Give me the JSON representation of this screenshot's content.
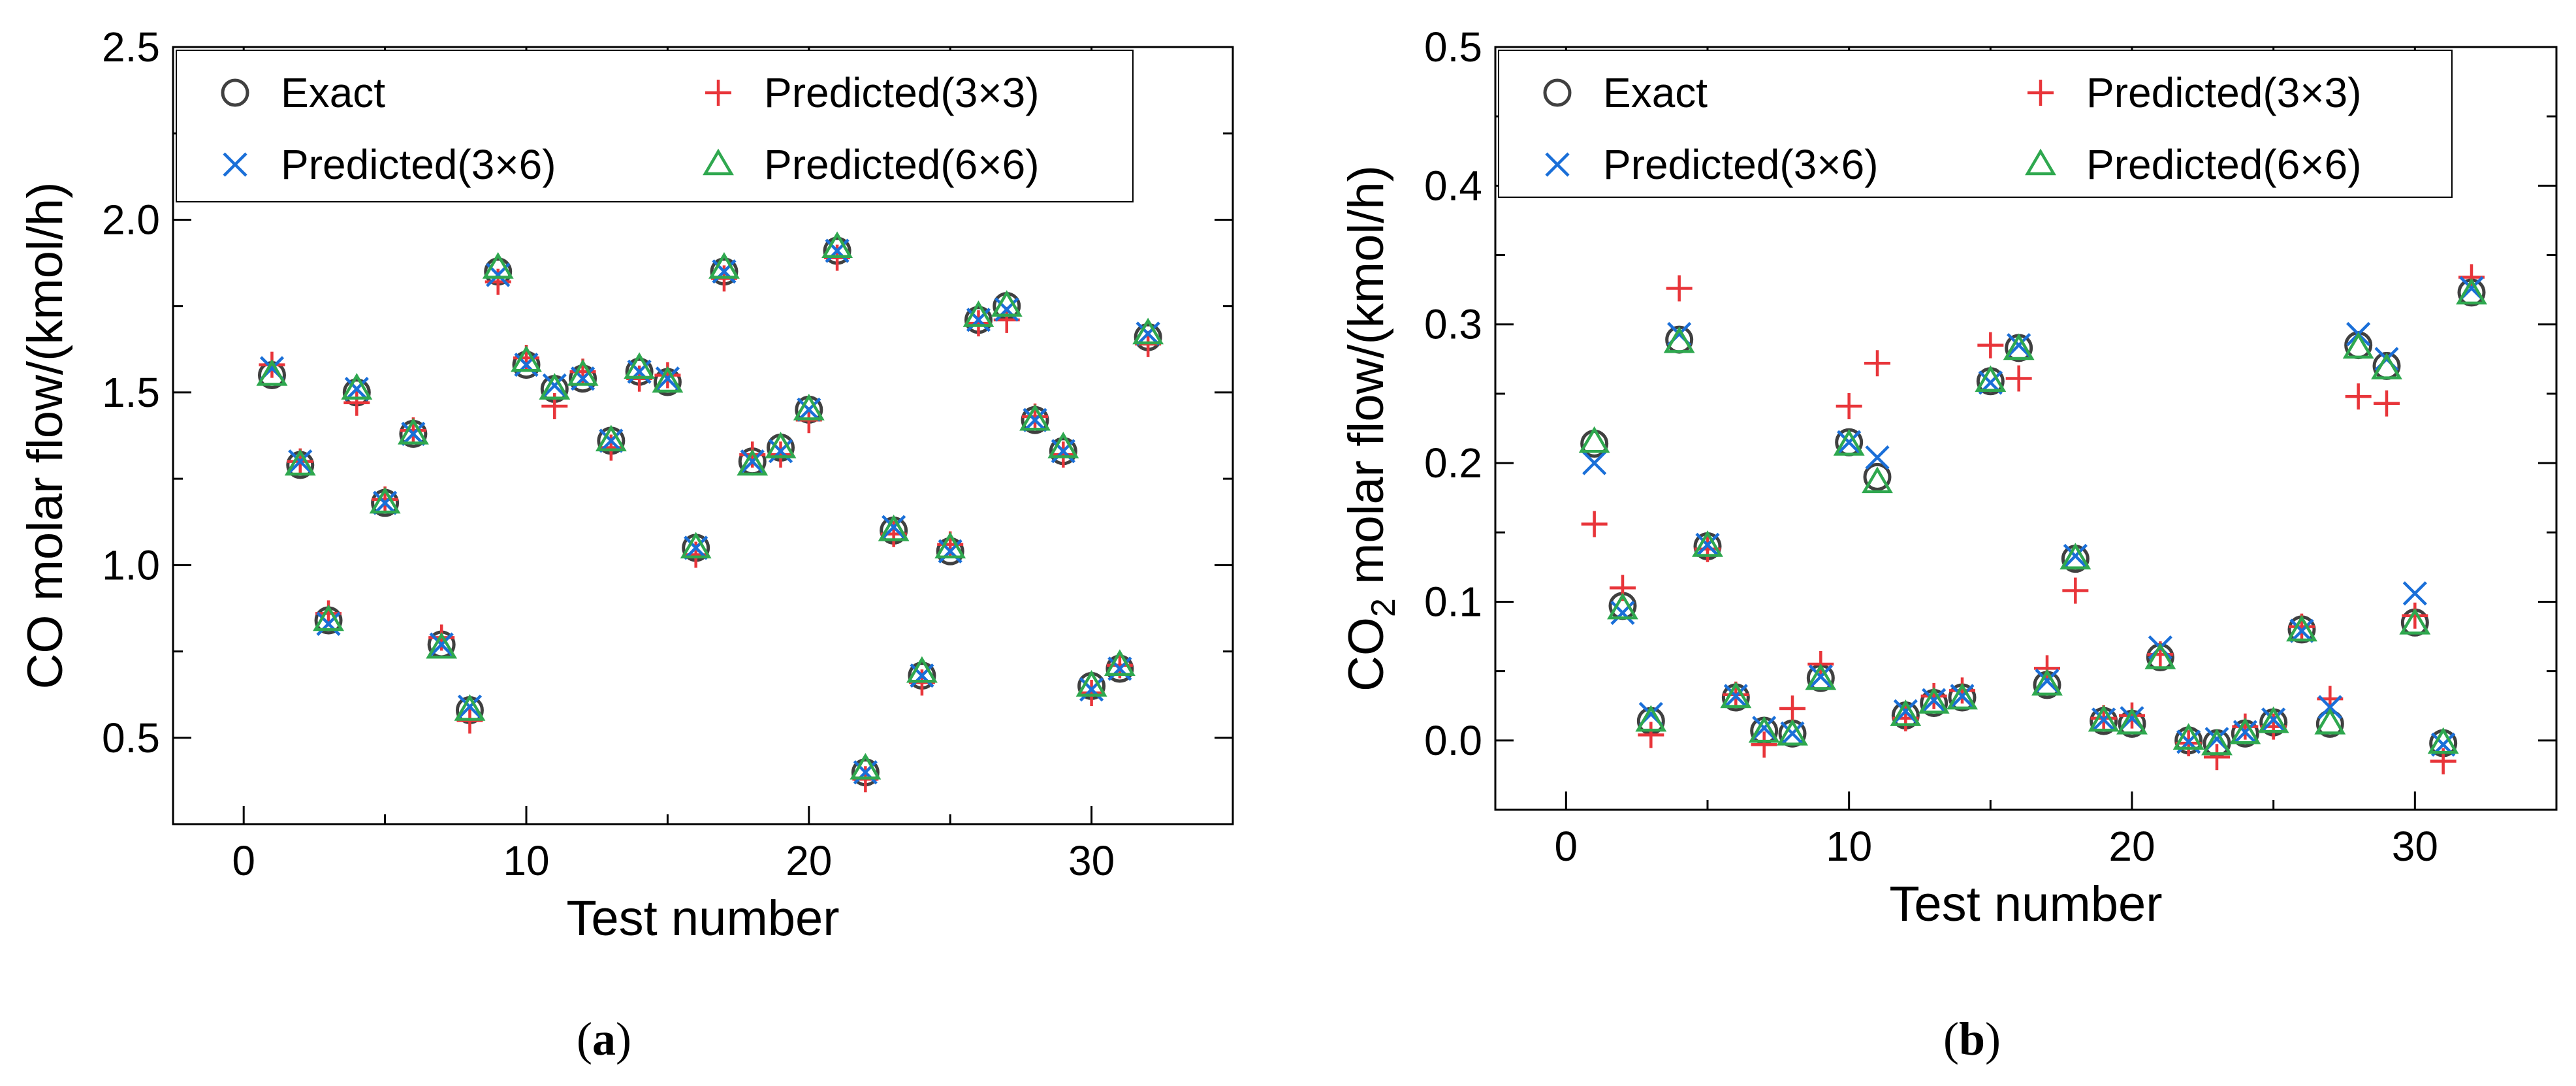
{
  "colors": {
    "exact": "#404040",
    "predicted_3x3": "#e8353a",
    "predicted_3x6": "#1a6fd8",
    "predicted_6x6": "#2fa84f",
    "axis": "#000000"
  },
  "chart_data": [
    {
      "id": "a",
      "type": "scatter",
      "caption_open": "(",
      "caption_letter": "a",
      "caption_close": ")",
      "xlabel": "Test number",
      "ylabel": "CO molar flow/(kmol/h)",
      "xlim": [
        -2.5,
        35
      ],
      "ylim": [
        0.25,
        2.5
      ],
      "xticks": [
        0,
        10,
        20,
        30
      ],
      "xtick_labels": [
        "0",
        "10",
        "20",
        "30"
      ],
      "yticks": [
        0.5,
        1.0,
        1.5,
        2.0,
        2.5
      ],
      "ytick_labels": [
        "0.5",
        "1.0",
        "1.5",
        "2.0",
        "2.5"
      ],
      "x": [
        1,
        2,
        3,
        4,
        5,
        6,
        7,
        8,
        9,
        10,
        11,
        12,
        13,
        14,
        15,
        16,
        17,
        18,
        19,
        20,
        21,
        22,
        23,
        24,
        25,
        26,
        27,
        28,
        29,
        30,
        31,
        32
      ],
      "series": [
        {
          "name": "Exact",
          "marker": "circle",
          "values": [
            1.55,
            1.29,
            0.84,
            1.5,
            1.18,
            1.38,
            0.77,
            0.58,
            1.85,
            1.58,
            1.51,
            1.54,
            1.36,
            1.56,
            1.53,
            1.05,
            1.85,
            1.3,
            1.34,
            1.45,
            1.91,
            0.4,
            1.1,
            0.68,
            1.04,
            1.71,
            1.75,
            1.42,
            1.33,
            0.65,
            0.7,
            1.66
          ]
        },
        {
          "name": "Predicted(3×3)",
          "marker": "plus",
          "values": [
            1.58,
            1.3,
            0.86,
            1.47,
            1.19,
            1.39,
            0.79,
            0.55,
            1.82,
            1.6,
            1.46,
            1.56,
            1.34,
            1.54,
            1.55,
            1.03,
            1.83,
            1.32,
            1.32,
            1.42,
            1.89,
            0.38,
            1.09,
            0.66,
            1.06,
            1.7,
            1.71,
            1.43,
            1.32,
            0.63,
            0.71,
            1.64
          ]
        },
        {
          "name": "Predicted(3×6)",
          "marker": "x",
          "values": [
            1.57,
            1.3,
            0.83,
            1.51,
            1.18,
            1.38,
            0.77,
            0.59,
            1.84,
            1.58,
            1.52,
            1.54,
            1.36,
            1.56,
            1.54,
            1.05,
            1.85,
            1.3,
            1.33,
            1.45,
            1.91,
            0.4,
            1.11,
            0.68,
            1.04,
            1.71,
            1.74,
            1.42,
            1.33,
            0.64,
            0.7,
            1.67
          ]
        },
        {
          "name": "Predicted(6×6)",
          "marker": "triangle",
          "values": [
            1.55,
            1.29,
            0.84,
            1.51,
            1.18,
            1.38,
            0.76,
            0.58,
            1.86,
            1.59,
            1.51,
            1.55,
            1.36,
            1.57,
            1.53,
            1.05,
            1.86,
            1.29,
            1.34,
            1.45,
            1.92,
            0.41,
            1.1,
            0.69,
            1.05,
            1.72,
            1.75,
            1.42,
            1.34,
            0.65,
            0.71,
            1.67
          ]
        }
      ]
    },
    {
      "id": "b",
      "type": "scatter",
      "caption_open": "(",
      "caption_letter": "b",
      "caption_close": ")",
      "xlabel": "Test number",
      "ylabel_main": "CO",
      "ylabel_sub": "2",
      "ylabel_rest": " molar flow/(kmol/h)",
      "xlim": [
        -2.5,
        35
      ],
      "ylim": [
        -0.05,
        0.5
      ],
      "xticks": [
        0,
        10,
        20,
        30
      ],
      "xtick_labels": [
        "0",
        "10",
        "20",
        "30"
      ],
      "yticks": [
        0.0,
        0.1,
        0.2,
        0.3,
        0.4,
        0.5
      ],
      "ytick_labels": [
        "0.0",
        "0.1",
        "0.2",
        "0.3",
        "0.4",
        "0.5"
      ],
      "x": [
        1,
        2,
        3,
        4,
        5,
        6,
        7,
        8,
        9,
        10,
        11,
        12,
        13,
        14,
        15,
        16,
        17,
        18,
        19,
        20,
        21,
        22,
        23,
        24,
        25,
        26,
        27,
        28,
        29,
        30,
        31,
        32
      ],
      "series": [
        {
          "name": "Exact",
          "marker": "circle",
          "values": [
            0.214,
            0.097,
            0.014,
            0.289,
            0.14,
            0.031,
            0.007,
            0.005,
            0.045,
            0.215,
            0.19,
            0.018,
            0.027,
            0.031,
            0.259,
            0.283,
            0.04,
            0.131,
            0.014,
            0.012,
            0.06,
            0.0,
            -0.002,
            0.005,
            0.013,
            0.08,
            0.012,
            0.285,
            0.27,
            0.085,
            -0.002,
            0.323
          ]
        },
        {
          "name": "Predicted(3×3)",
          "marker": "plus",
          "values": [
            0.156,
            0.11,
            0.004,
            0.326,
            0.138,
            0.033,
            -0.003,
            0.023,
            0.055,
            0.241,
            0.272,
            0.016,
            0.032,
            0.036,
            0.285,
            0.261,
            0.052,
            0.108,
            0.016,
            0.018,
            0.062,
            -0.002,
            -0.012,
            0.01,
            0.01,
            0.082,
            0.03,
            0.248,
            0.243,
            0.09,
            -0.015,
            0.334
          ]
        },
        {
          "name": "Predicted(3×6)",
          "marker": "x",
          "values": [
            0.2,
            0.092,
            0.019,
            0.293,
            0.141,
            0.032,
            0.009,
            0.005,
            0.046,
            0.215,
            0.204,
            0.021,
            0.029,
            0.032,
            0.258,
            0.285,
            0.043,
            0.133,
            0.015,
            0.016,
            0.067,
            -0.001,
            0.001,
            0.006,
            0.015,
            0.079,
            0.024,
            0.293,
            0.275,
            0.106,
            -0.003,
            0.326
          ]
        },
        {
          "name": "Predicted(6×6)",
          "marker": "triangle",
          "values": [
            0.215,
            0.095,
            0.014,
            0.287,
            0.14,
            0.031,
            0.006,
            0.004,
            0.044,
            0.213,
            0.186,
            0.018,
            0.027,
            0.03,
            0.259,
            0.282,
            0.04,
            0.131,
            0.014,
            0.012,
            0.059,
            0.001,
            -0.003,
            0.005,
            0.013,
            0.079,
            0.012,
            0.283,
            0.268,
            0.084,
            -0.002,
            0.322
          ]
        }
      ]
    }
  ],
  "legend": {
    "labels": [
      "Exact",
      "Predicted(3×6)",
      "Predicted(3×3)",
      "Predicted(6×6)"
    ]
  }
}
